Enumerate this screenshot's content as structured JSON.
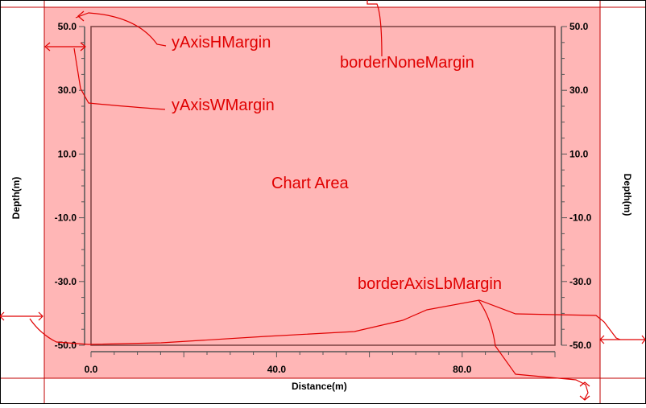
{
  "chart_data": {
    "type": "line",
    "title": "",
    "xlabel": "Distance(m)",
    "ylabel_left": "Depth(m)",
    "ylabel_right": "Depth(m)",
    "xlim": [
      0,
      100
    ],
    "ylim": [
      -50,
      50
    ],
    "x_ticks": [
      {
        "value": 0,
        "label": "0.0"
      },
      {
        "value": 40,
        "label": "40.0"
      },
      {
        "value": 80,
        "label": "80.0"
      }
    ],
    "y_ticks": [
      {
        "value": 50,
        "label": "50.0"
      },
      {
        "value": 30,
        "label": "30.0"
      },
      {
        "value": 10,
        "label": "10.0"
      },
      {
        "value": -10,
        "label": "-10.0"
      },
      {
        "value": -30,
        "label": "-30.0"
      },
      {
        "value": -50,
        "label": "-50.0"
      }
    ],
    "grid": false,
    "plot_area_color": "#ffb6b6",
    "border_color": "#c00000",
    "annotation_color": "#e00000"
  },
  "annotations": {
    "chart_area": "Chart Area",
    "y_axis_h_margin": "yAxisHMargin",
    "y_axis_w_margin": "yAxisWMargin",
    "border_none_margin": "borderNoneMargin",
    "border_axis_lb_margin": "borderAxisLbMargin"
  }
}
